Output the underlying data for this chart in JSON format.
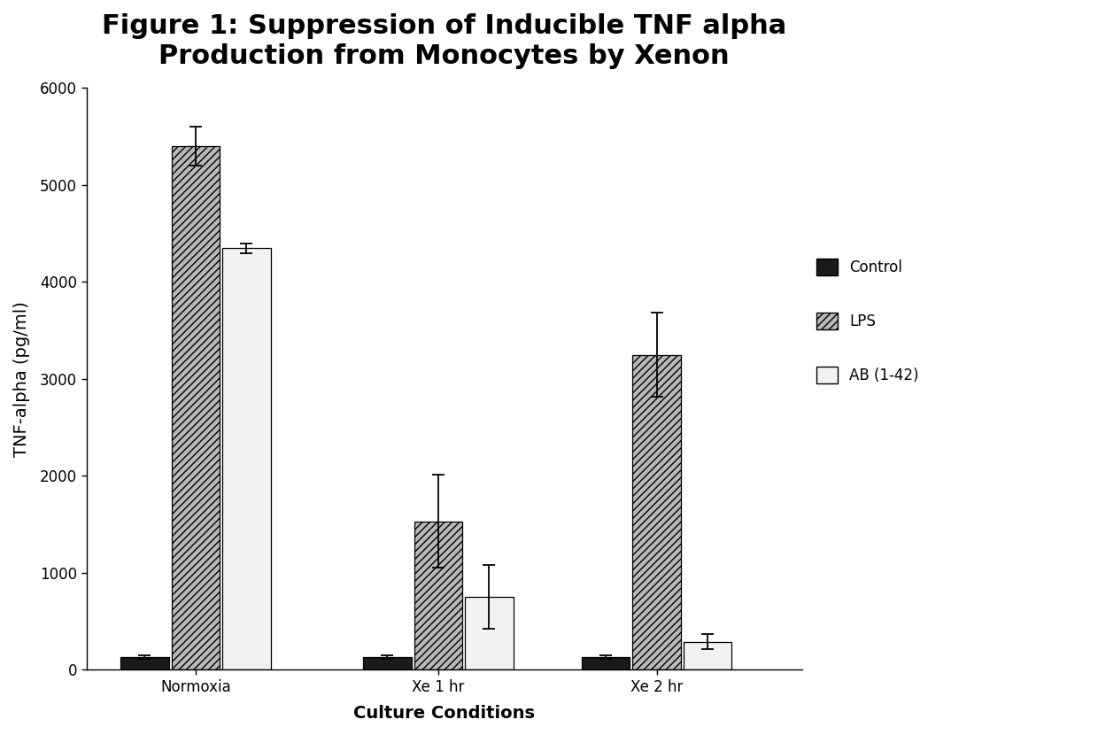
{
  "title": "Figure 1: Suppression of Inducible TNF alpha\nProduction from Monocytes by Xenon",
  "xlabel": "Culture Conditions",
  "ylabel": "TNF-alpha (pg/ml)",
  "categories": [
    "Normoxia",
    "Xe 1 hr",
    "Xe 2 hr"
  ],
  "series": {
    "Control": {
      "values": [
        130,
        130,
        130
      ],
      "errors": [
        20,
        20,
        20
      ],
      "color": "#1a1a1a",
      "hatch": ""
    },
    "LPS": {
      "values": [
        5400,
        1530,
        3250
      ],
      "errors": [
        200,
        480,
        430
      ],
      "color": "#b8b8b8",
      "hatch": "////"
    },
    "AB (1-42)": {
      "values": [
        4350,
        750,
        290
      ],
      "errors": [
        50,
        330,
        80
      ],
      "color": "#f2f2f2",
      "hatch": ""
    }
  },
  "ylim": [
    0,
    6000
  ],
  "yticks": [
    0,
    1000,
    2000,
    3000,
    4000,
    5000,
    6000
  ],
  "bar_width": 0.2,
  "title_fontsize": 22,
  "axis_label_fontsize": 14,
  "tick_fontsize": 12,
  "legend_fontsize": 12,
  "background_color": "#ffffff",
  "group_positions": [
    0.35,
    1.35,
    2.25
  ]
}
